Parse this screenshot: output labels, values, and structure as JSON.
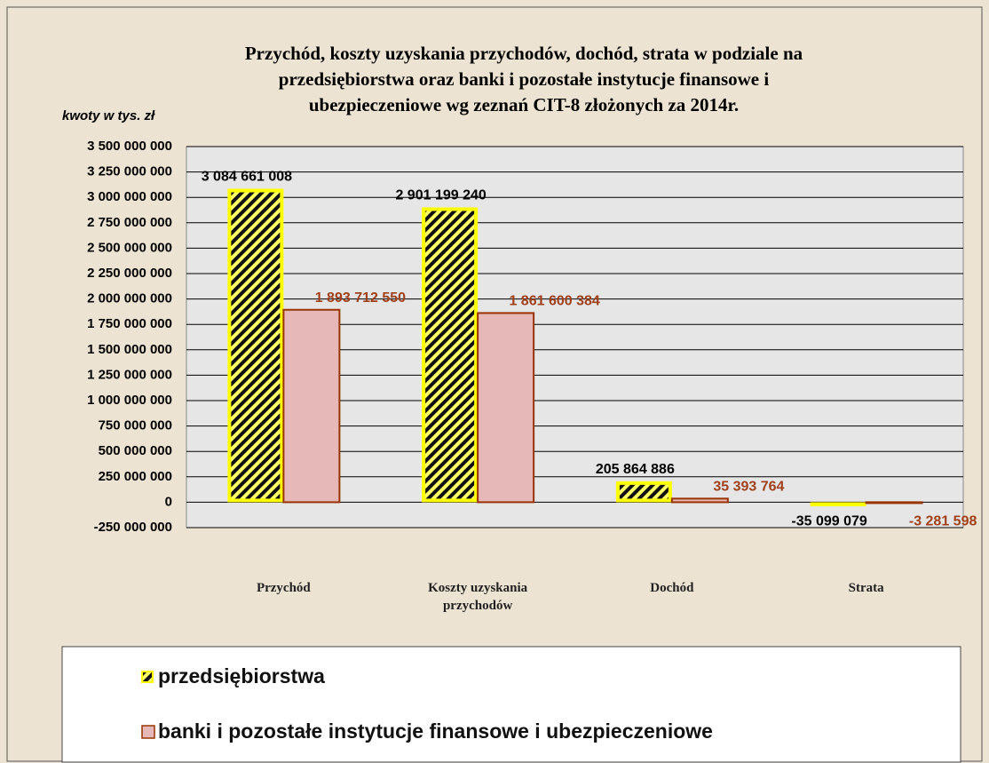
{
  "chart_data": {
    "type": "bar",
    "title": [
      "Przychód, koszty uzyskania przychodów, dochód, strata w podziale na",
      "przedsiębiorstwa  oraz banki i pozostałe instytucje finansowe i",
      "ubezpieczeniowe  wg zeznań CIT-8 złożonych za 2014r."
    ],
    "y_label": "kwoty w tys. zł",
    "categories": [
      "Przychód",
      "Koszty uzyskania przychodów",
      "Dochód",
      "Strata"
    ],
    "series": [
      {
        "name": "przedsiębiorstwa",
        "color": "#ffff00",
        "values": [
          3084661008,
          2901199240,
          205864886,
          -35099079
        ],
        "value_labels": [
          "3 084 661 008",
          "2 901 199 240",
          "205 864 886",
          "-35 099 079"
        ]
      },
      {
        "name": "banki i pozostałe instytucje finansowe i ubezpieczeniowe",
        "color": "#e6b8b7",
        "values": [
          1893712550,
          1861600384,
          35393764,
          -3281598
        ],
        "value_labels": [
          "1 893 712 550",
          "1 861 600 384",
          "35 393 764",
          "-3 281 598"
        ]
      }
    ],
    "ylim": [
      -250000000,
      3500000000
    ],
    "yticks": [
      {
        "value": -250000000,
        "label": "-250 000 000"
      },
      0,
      {
        "value": 250000000,
        "label": "250 000 000"
      },
      {
        "value": 500000000,
        "label": "500 000 000"
      },
      {
        "value": 750000000,
        "label": "750 000 000"
      },
      {
        "value": 1000000000,
        "label": "1 000 000 000"
      },
      {
        "value": 1250000000,
        "label": "1 250 000 000"
      },
      {
        "value": 1500000000,
        "label": "1 500 000 000"
      },
      {
        "value": 1750000000,
        "label": "1 750 000 000"
      },
      {
        "value": 2000000000,
        "label": "2 000 000 000"
      },
      {
        "value": 2250000000,
        "label": "2 250 000 000"
      },
      {
        "value": 2500000000,
        "label": "2 500 000 000"
      },
      {
        "value": 2750000000,
        "label": "2 750 000 000"
      },
      {
        "value": 3000000000,
        "label": "3 000 000 000"
      },
      {
        "value": 3250000000,
        "label": "3 250 000 000"
      },
      {
        "value": 3500000000,
        "label": "3 500 000 000"
      }
    ],
    "grid": true
  }
}
